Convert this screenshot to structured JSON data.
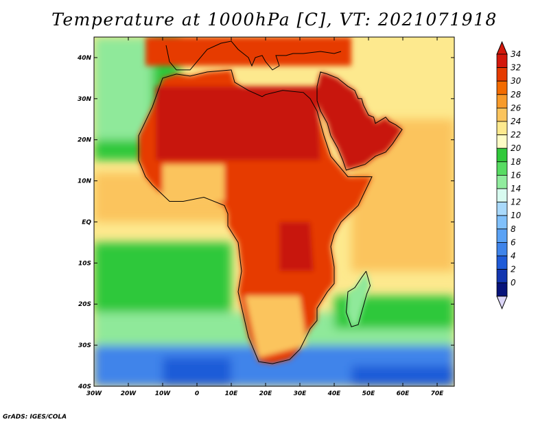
{
  "title": "Temperature at 1000hPa [C], VT: 2021071918",
  "credit": "GrADS: IGES/COLA",
  "map": {
    "lon_range": [
      -30,
      75
    ],
    "lat_range": [
      -40,
      45
    ],
    "x_ticks": [
      {
        "lon": -30,
        "label": "30W"
      },
      {
        "lon": -20,
        "label": "20W"
      },
      {
        "lon": -10,
        "label": "10W"
      },
      {
        "lon": 0,
        "label": "0"
      },
      {
        "lon": 10,
        "label": "10E"
      },
      {
        "lon": 20,
        "label": "20E"
      },
      {
        "lon": 30,
        "label": "30E"
      },
      {
        "lon": 40,
        "label": "40E"
      },
      {
        "lon": 50,
        "label": "50E"
      },
      {
        "lon": 60,
        "label": "60E"
      },
      {
        "lon": 70,
        "label": "70E"
      }
    ],
    "y_ticks": [
      {
        "lat": 40,
        "label": "40N"
      },
      {
        "lat": 30,
        "label": "30N"
      },
      {
        "lat": 20,
        "label": "20N"
      },
      {
        "lat": 10,
        "label": "10N"
      },
      {
        "lat": 0,
        "label": "EQ"
      },
      {
        "lat": -10,
        "label": "10S"
      },
      {
        "lat": -20,
        "label": "20S"
      },
      {
        "lat": -30,
        "label": "30S"
      },
      {
        "lat": -40,
        "label": "40S"
      }
    ],
    "africa_outline": [
      [
        -6,
        36
      ],
      [
        -10,
        35
      ],
      [
        -13,
        28
      ],
      [
        -17,
        21
      ],
      [
        -17,
        15
      ],
      [
        -15,
        11
      ],
      [
        -13,
        9
      ],
      [
        -8,
        5
      ],
      [
        -4,
        5
      ],
      [
        2,
        6
      ],
      [
        8,
        4
      ],
      [
        9,
        2
      ],
      [
        9,
        -1
      ],
      [
        12,
        -5
      ],
      [
        13,
        -12
      ],
      [
        12,
        -17
      ],
      [
        15,
        -28
      ],
      [
        18,
        -34
      ],
      [
        22,
        -34.5
      ],
      [
        27,
        -33.5
      ],
      [
        30,
        -31
      ],
      [
        33,
        -26
      ],
      [
        35,
        -24
      ],
      [
        35,
        -21
      ],
      [
        38,
        -17
      ],
      [
        40,
        -15
      ],
      [
        40,
        -11
      ],
      [
        39,
        -6
      ],
      [
        40,
        -3
      ],
      [
        42,
        0
      ],
      [
        47,
        4
      ],
      [
        51,
        11
      ],
      [
        44,
        11
      ],
      [
        43,
        12
      ],
      [
        39,
        16
      ],
      [
        37,
        21
      ],
      [
        35,
        27
      ],
      [
        33,
        30
      ],
      [
        31,
        31.5
      ],
      [
        25,
        32
      ],
      [
        20,
        31
      ],
      [
        19,
        30.5
      ],
      [
        15,
        32
      ],
      [
        11,
        34
      ],
      [
        10,
        37
      ],
      [
        3,
        36.5
      ],
      [
        -2,
        35.5
      ],
      [
        -6,
        36
      ]
    ],
    "madagascar_outline": [
      [
        49.3,
        -12
      ],
      [
        50.5,
        -15.5
      ],
      [
        49.5,
        -17.5
      ],
      [
        48,
        -22
      ],
      [
        47,
        -25
      ],
      [
        45,
        -25.5
      ],
      [
        43.5,
        -22
      ],
      [
        44,
        -17
      ],
      [
        46,
        -16
      ],
      [
        48,
        -13.5
      ],
      [
        49.3,
        -12
      ]
    ],
    "arabia_outline": [
      [
        35,
        29.5
      ],
      [
        36,
        27
      ],
      [
        38,
        24
      ],
      [
        39,
        21
      ],
      [
        41,
        18
      ],
      [
        42.5,
        15
      ],
      [
        43.5,
        12.6
      ],
      [
        45,
        13
      ],
      [
        49,
        14
      ],
      [
        52,
        16
      ],
      [
        55,
        17
      ],
      [
        57,
        19
      ],
      [
        59.8,
        22.5
      ],
      [
        58,
        23.6
      ],
      [
        56,
        24.5
      ],
      [
        55,
        25.5
      ],
      [
        52,
        24
      ],
      [
        51.5,
        25.5
      ],
      [
        50,
        26
      ],
      [
        48.5,
        28.5
      ],
      [
        48,
        30
      ],
      [
        47,
        30
      ],
      [
        46,
        32
      ],
      [
        44,
        33
      ],
      [
        41,
        35
      ],
      [
        38,
        36
      ],
      [
        36,
        36.5
      ],
      [
        35,
        33
      ],
      [
        35,
        29.5
      ]
    ],
    "europe_coast": [
      [
        -9,
        43
      ],
      [
        -8,
        39
      ],
      [
        -6,
        37
      ],
      [
        -2,
        37
      ],
      [
        0,
        39
      ],
      [
        3,
        42
      ],
      [
        7,
        43.5
      ],
      [
        10,
        44
      ],
      [
        12,
        42
      ],
      [
        15,
        40
      ],
      [
        16,
        38
      ],
      [
        17,
        40
      ],
      [
        19,
        40.5
      ],
      [
        20,
        39
      ],
      [
        22,
        37
      ],
      [
        24,
        38
      ],
      [
        23,
        40.5
      ],
      [
        26,
        40.5
      ],
      [
        28,
        41
      ],
      [
        31,
        41
      ],
      [
        36,
        41.5
      ],
      [
        40,
        41
      ],
      [
        42,
        41.5
      ]
    ]
  },
  "colorbar": {
    "labels": [
      "34",
      "32",
      "30",
      "28",
      "26",
      "24",
      "22",
      "20",
      "18",
      "16",
      "14",
      "12",
      "10",
      "8",
      "6",
      "4",
      "2",
      "0"
    ],
    "colors": [
      "#d3180c",
      "#e53b00",
      "#f36b00",
      "#f89b2a",
      "#fbc45d",
      "#fde98e",
      "#fefcc6",
      "#31c93b",
      "#57dc62",
      "#91ec9e",
      "#d8fbf0",
      "#a9d9fb",
      "#80c0fb",
      "#5aa2f5",
      "#3f84ea",
      "#1f5bd8",
      "#1336b0",
      "#07137a"
    ]
  },
  "colors": {
    "hot": "#c8140a",
    "warm": "#e63a00",
    "ocean_warm": "#fbc45d",
    "ocean_mild": "#fde98e",
    "ocean_cool_green": "#2fc83a",
    "ocean_light_green": "#8fe99a",
    "ocean_cold": "#3f84ea",
    "ocean_very_cold": "#1f5bd8"
  }
}
